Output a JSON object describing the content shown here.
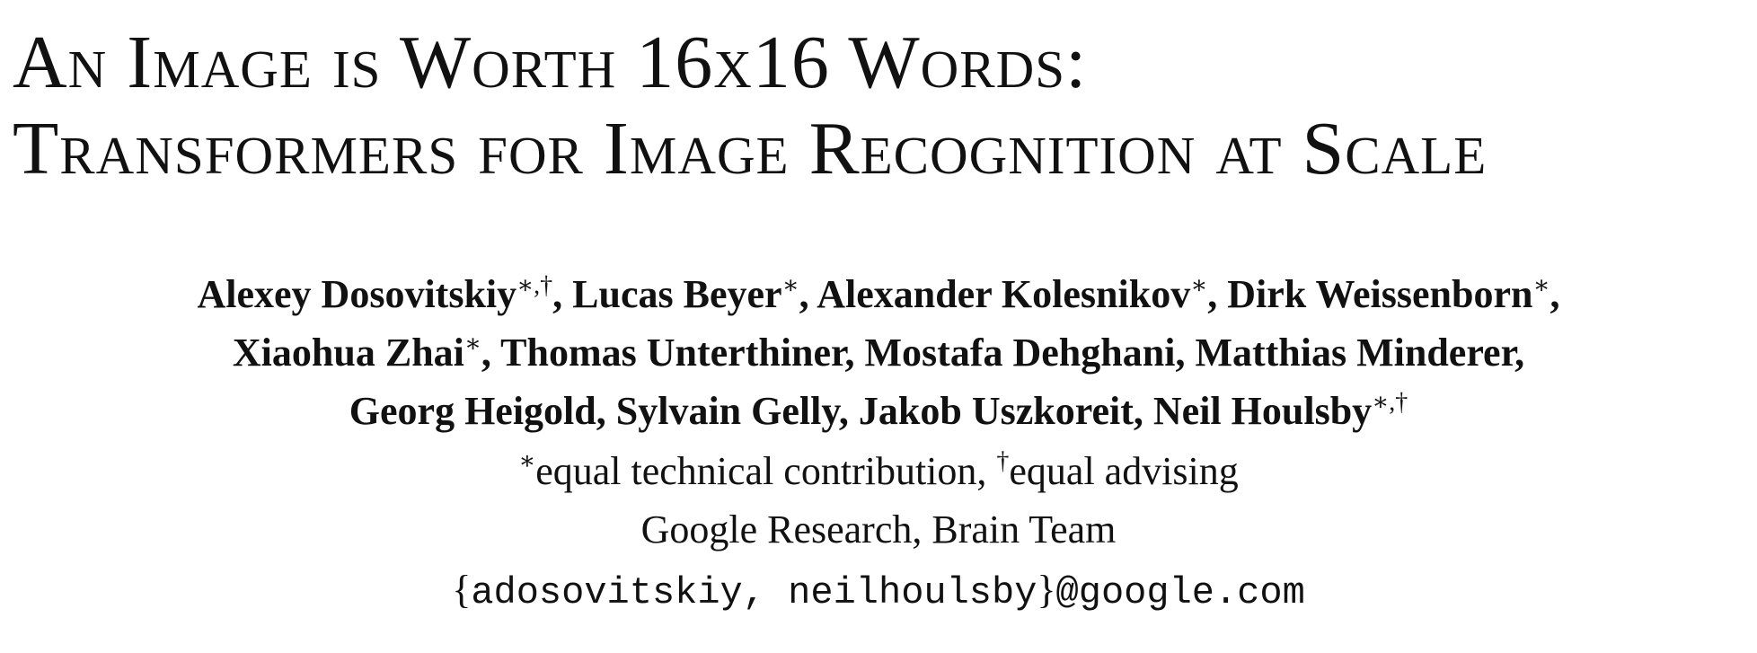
{
  "title": {
    "line1": "An Image is Worth 16x16 Words:",
    "line2": "Transformers for Image Recognition at Scale"
  },
  "authors": {
    "line1": [
      {
        "name": "Alexey Dosovitskiy",
        "mark": "∗,†",
        "sep": ", "
      },
      {
        "name": "Lucas Beyer",
        "mark": "∗",
        "sep": ", "
      },
      {
        "name": "Alexander Kolesnikov",
        "mark": "∗",
        "sep": ", "
      },
      {
        "name": "Dirk Weissenborn",
        "mark": "∗",
        "sep": ","
      }
    ],
    "line2": [
      {
        "name": "Xiaohua Zhai",
        "mark": "∗",
        "sep": ", "
      },
      {
        "name": "Thomas Unterthiner",
        "sep": ", "
      },
      {
        "name": "Mostafa Dehghani",
        "sep": ", "
      },
      {
        "name": "Matthias Minderer",
        "sep": ","
      }
    ],
    "line3": [
      {
        "name": "Georg Heigold",
        "sep": ", "
      },
      {
        "name": "Sylvain Gelly",
        "sep": ", "
      },
      {
        "name": "Jakob Uszkoreit",
        "sep": ", "
      },
      {
        "name": "Neil Houlsby",
        "mark": "∗,†"
      }
    ]
  },
  "contribution_note": {
    "equal_mark": "∗",
    "equal_text": "equal technical contribution, ",
    "advising_mark": "†",
    "advising_text": "equal advising"
  },
  "affiliation": "Google Research, Brain Team",
  "email": {
    "open_brace": "{",
    "usernames": "adosovitskiy, neilhoulsby",
    "close_brace": "}",
    "domain": "@google.com"
  }
}
